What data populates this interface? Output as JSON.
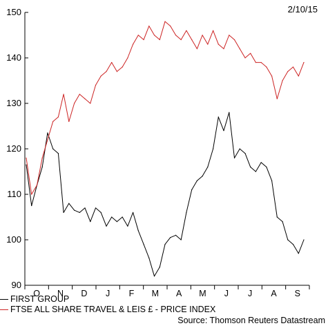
{
  "date_label": "2/10/15",
  "source": "Source: Thomson Reuters Datastream",
  "chart_data": {
    "type": "line",
    "ylim": [
      90,
      150
    ],
    "y_ticks": [
      90,
      100,
      110,
      120,
      130,
      140,
      150
    ],
    "x_tick_labels": [
      "O",
      "N",
      "D",
      "J",
      "F",
      "M",
      "A",
      "M",
      "J",
      "J",
      "A",
      "S"
    ],
    "x": [
      "2014-09-29",
      "2014-10-06",
      "2014-10-13",
      "2014-10-20",
      "2014-10-27",
      "2014-11-03",
      "2014-11-10",
      "2014-11-17",
      "2014-11-24",
      "2014-12-01",
      "2014-12-08",
      "2014-12-15",
      "2014-12-22",
      "2014-12-29",
      "2015-01-05",
      "2015-01-12",
      "2015-01-19",
      "2015-01-26",
      "2015-02-02",
      "2015-02-09",
      "2015-02-16",
      "2015-02-23",
      "2015-03-02",
      "2015-03-09",
      "2015-03-16",
      "2015-03-23",
      "2015-03-30",
      "2015-04-06",
      "2015-04-13",
      "2015-04-20",
      "2015-04-27",
      "2015-05-04",
      "2015-05-11",
      "2015-05-18",
      "2015-05-25",
      "2015-06-01",
      "2015-06-08",
      "2015-06-15",
      "2015-06-22",
      "2015-06-29",
      "2015-07-06",
      "2015-07-13",
      "2015-07-20",
      "2015-07-27",
      "2015-08-03",
      "2015-08-10",
      "2015-08-17",
      "2015-08-24",
      "2015-08-31",
      "2015-09-07",
      "2015-09-14",
      "2015-09-21",
      "2015-09-28"
    ],
    "series": [
      {
        "name": "FIRST GROUP",
        "color": "#000000",
        "values": [
          116.5,
          107.5,
          112,
          116,
          123.5,
          120,
          119,
          106,
          108,
          106.5,
          106,
          107,
          104,
          107,
          106,
          103,
          105,
          104,
          105,
          103,
          106,
          102,
          99,
          96,
          92,
          94,
          99,
          100.5,
          101,
          100,
          106,
          111,
          113,
          114,
          116,
          120,
          127,
          124,
          128,
          118,
          120,
          119,
          116,
          115,
          117,
          116,
          113,
          105,
          104,
          100,
          99,
          97,
          100
        ],
        "line_width": 1
      },
      {
        "name": "FTSE ALL SHARE TRAVEL & LEIS £ - PRICE INDEX",
        "color": "#cc2222",
        "values": [
          118,
          110,
          112,
          118,
          122,
          126,
          127,
          132,
          126,
          130,
          132,
          131,
          130,
          134,
          136,
          137,
          139,
          137,
          138,
          140,
          143,
          145,
          144,
          147,
          145,
          144,
          148,
          147,
          145,
          144,
          146,
          144,
          142,
          145,
          143,
          146,
          143,
          142,
          145,
          144,
          142,
          140,
          141,
          139,
          139,
          138,
          136,
          131,
          135,
          137,
          138,
          136,
          139
        ],
        "line_width": 1
      }
    ]
  }
}
